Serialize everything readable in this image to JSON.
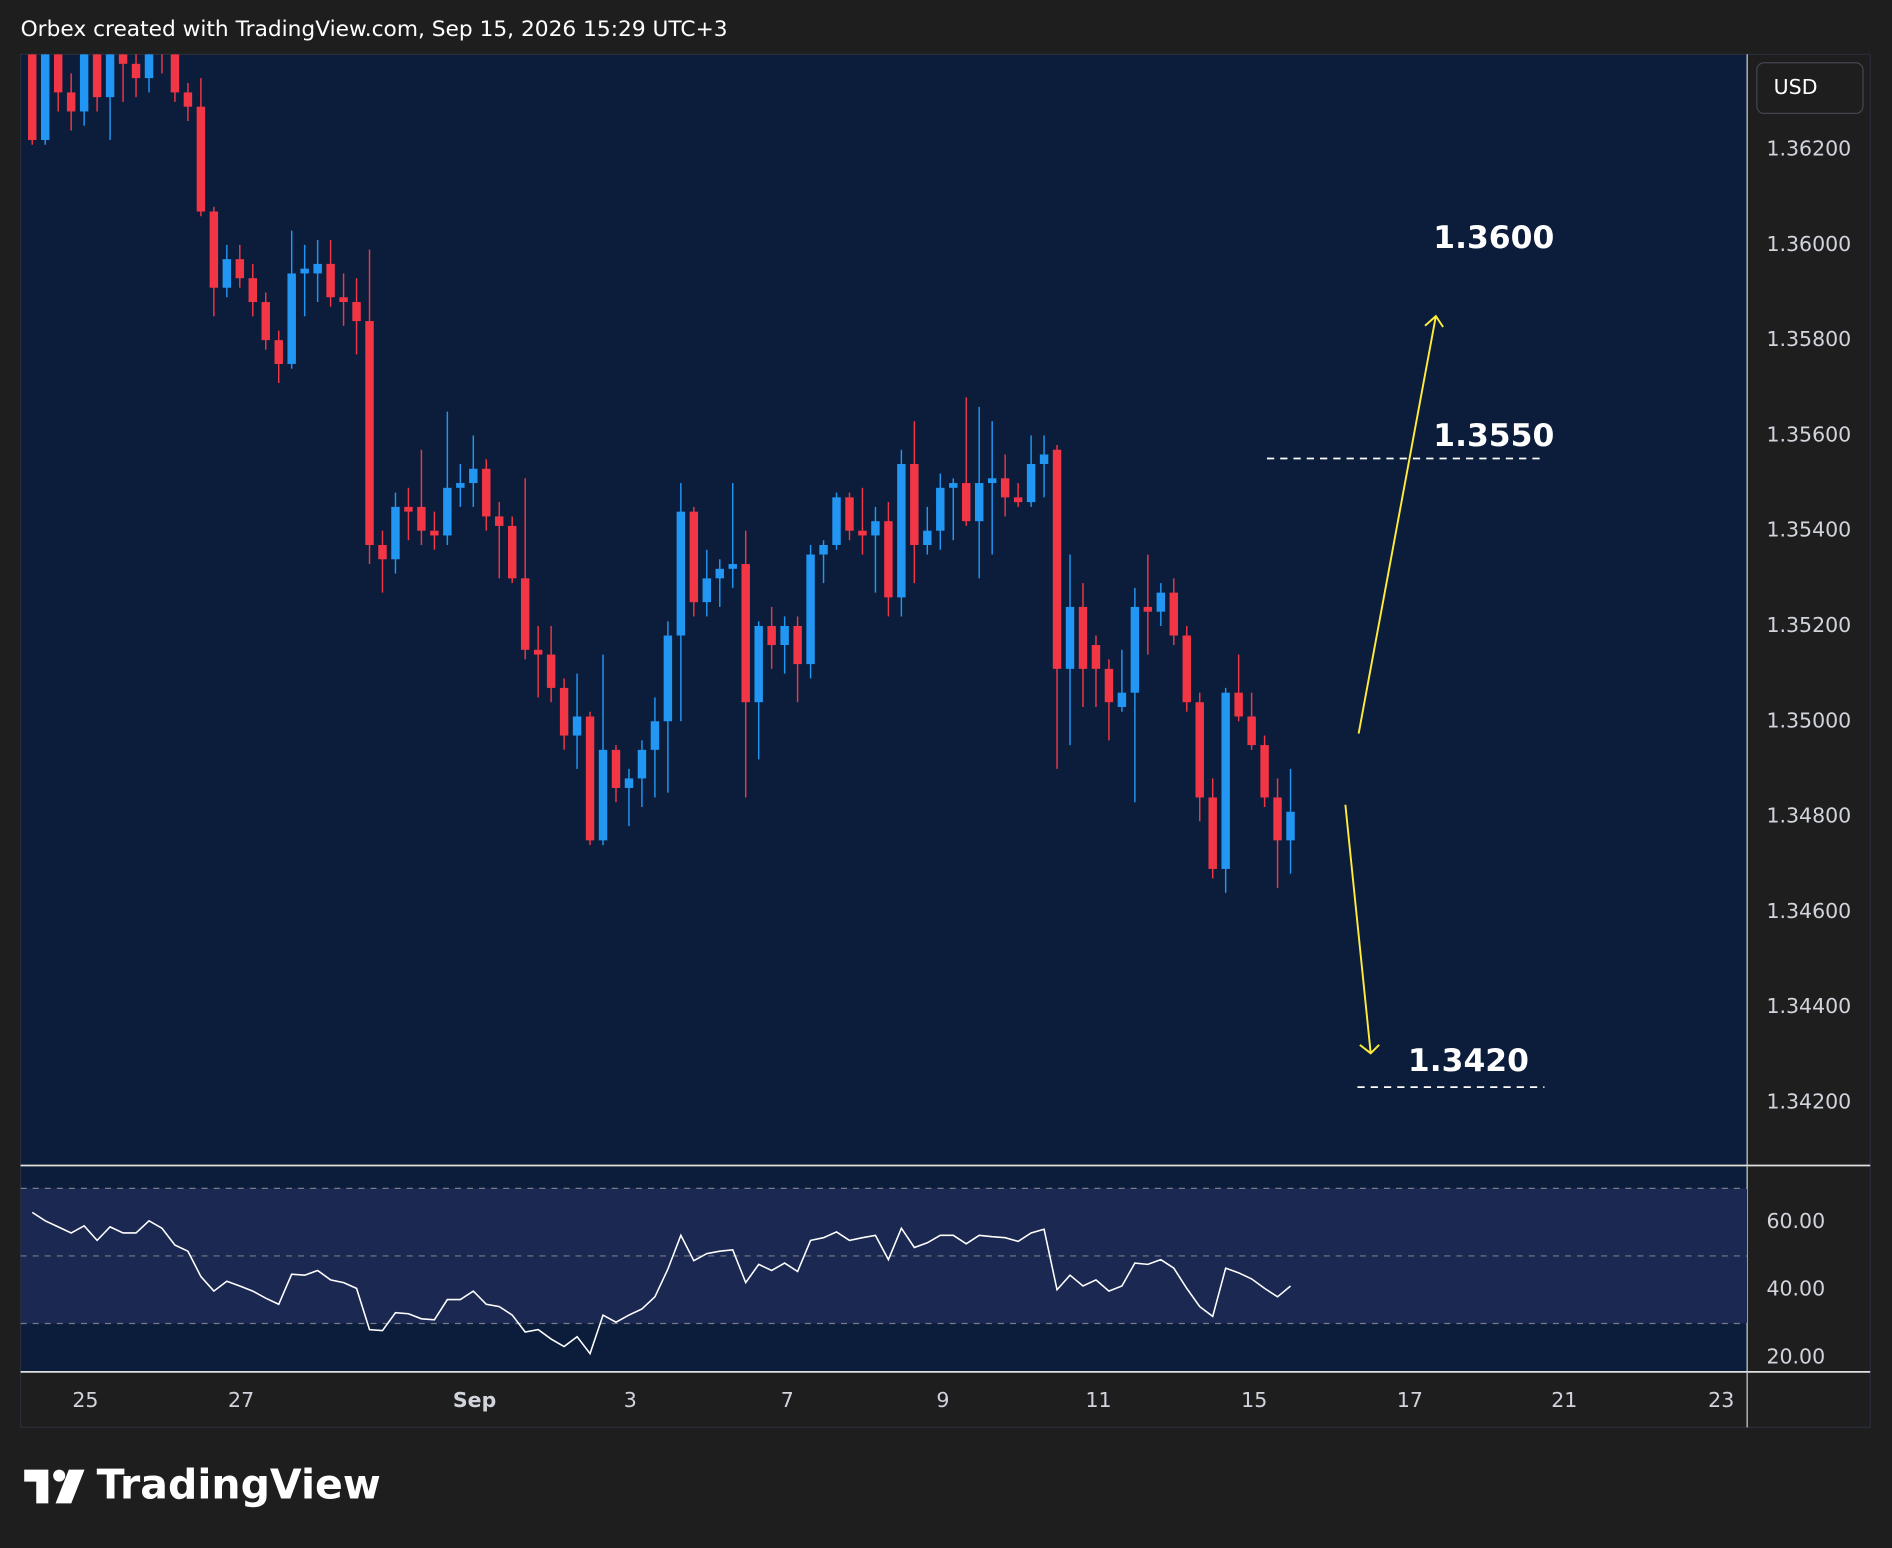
{
  "header": "Orbex created with TradingView.com, Sep 15, 2026 15:29 UTC+3",
  "brand": "TradingView",
  "chart_data": [
    {
      "type": "candlestick",
      "currency": "USD",
      "up_color": "#2196f3",
      "down_color": "#f23645",
      "xlim": [
        -0.9,
        132.2
      ],
      "ylim": [
        1.3407,
        1.364
      ],
      "yticks": [
        {
          "value": 1.342,
          "label": "1.34200"
        },
        {
          "value": 1.344,
          "label": "1.34400"
        },
        {
          "value": 1.346,
          "label": "1.34600"
        },
        {
          "value": 1.348,
          "label": "1.34800"
        },
        {
          "value": 1.35,
          "label": "1.35000"
        },
        {
          "value": 1.352,
          "label": "1.35200"
        },
        {
          "value": 1.354,
          "label": "1.35400"
        },
        {
          "value": 1.356,
          "label": "1.35600"
        },
        {
          "value": 1.358,
          "label": "1.35800"
        },
        {
          "value": 1.36,
          "label": "1.36000"
        },
        {
          "value": 1.362,
          "label": "1.36200"
        }
      ],
      "xticks": [
        {
          "value": 4.1,
          "label": "25"
        },
        {
          "value": 16.1,
          "label": "27"
        },
        {
          "value": 34.1,
          "label": "Sep"
        },
        {
          "value": 46.1,
          "label": "3"
        },
        {
          "value": 58.2,
          "label": "7"
        },
        {
          "value": 70.2,
          "label": "9"
        },
        {
          "value": 82.2,
          "label": "11"
        },
        {
          "value": 94.2,
          "label": "15"
        },
        {
          "value": 106.2,
          "label": "17"
        },
        {
          "value": 118.1,
          "label": "21"
        },
        {
          "value": 130.2,
          "label": "23"
        }
      ],
      "annotations": [
        {
          "text": "1.3600"
        },
        {
          "text": "1.3550"
        },
        {
          "text": "1.3420"
        }
      ],
      "values": [
        [
          1.364,
          1.3645,
          1.3621,
          1.3622
        ],
        [
          1.3622,
          1.3645,
          1.3621,
          1.364
        ],
        [
          1.364,
          1.3645,
          1.3628,
          1.3632
        ],
        [
          1.3632,
          1.3636,
          1.3624,
          1.3628
        ],
        [
          1.3628,
          1.3645,
          1.3625,
          1.364
        ],
        [
          1.364,
          1.3645,
          1.3628,
          1.3631
        ],
        [
          1.3631,
          1.3645,
          1.3622,
          1.364
        ],
        [
          1.364,
          1.3645,
          1.363,
          1.3638
        ],
        [
          1.3638,
          1.3642,
          1.3631,
          1.3635
        ],
        [
          1.3635,
          1.3645,
          1.3632,
          1.364
        ],
        [
          1.3641,
          1.3645,
          1.3636,
          1.364
        ],
        [
          1.364,
          1.3645,
          1.363,
          1.3632
        ],
        [
          1.3632,
          1.3634,
          1.3626,
          1.3629
        ],
        [
          1.3629,
          1.3635,
          1.3606,
          1.3607
        ],
        [
          1.3607,
          1.3608,
          1.3585,
          1.3591
        ],
        [
          1.3591,
          1.36,
          1.3589,
          1.3597
        ],
        [
          1.3597,
          1.36,
          1.3591,
          1.3593
        ],
        [
          1.3593,
          1.3596,
          1.3585,
          1.3588
        ],
        [
          1.3588,
          1.359,
          1.3578,
          1.358
        ],
        [
          1.358,
          1.3582,
          1.3571,
          1.3575
        ],
        [
          1.3575,
          1.3603,
          1.3574,
          1.3594
        ],
        [
          1.3594,
          1.36,
          1.3585,
          1.3595
        ],
        [
          1.3594,
          1.3601,
          1.3588,
          1.3596
        ],
        [
          1.3596,
          1.3601,
          1.3587,
          1.3589
        ],
        [
          1.3589,
          1.3594,
          1.3583,
          1.3588
        ],
        [
          1.3588,
          1.3593,
          1.3577,
          1.3584
        ],
        [
          1.3584,
          1.3599,
          1.3533,
          1.3537
        ],
        [
          1.3537,
          1.354,
          1.3527,
          1.3534
        ],
        [
          1.3534,
          1.3548,
          1.3531,
          1.3545
        ],
        [
          1.3545,
          1.3549,
          1.3538,
          1.3544
        ],
        [
          1.3545,
          1.3557,
          1.3537,
          1.354
        ],
        [
          1.354,
          1.3544,
          1.3536,
          1.3539
        ],
        [
          1.3539,
          1.3565,
          1.3537,
          1.3549
        ],
        [
          1.3549,
          1.3554,
          1.3545,
          1.355
        ],
        [
          1.355,
          1.356,
          1.3545,
          1.3553
        ],
        [
          1.3553,
          1.3555,
          1.354,
          1.3543
        ],
        [
          1.3543,
          1.3546,
          1.353,
          1.3541
        ],
        [
          1.3541,
          1.3543,
          1.3529,
          1.353
        ],
        [
          1.353,
          1.3551,
          1.3513,
          1.3515
        ],
        [
          1.3515,
          1.352,
          1.3505,
          1.3514
        ],
        [
          1.3514,
          1.352,
          1.3504,
          1.3507
        ],
        [
          1.3507,
          1.3509,
          1.3494,
          1.3497
        ],
        [
          1.3497,
          1.351,
          1.349,
          1.3501
        ],
        [
          1.3501,
          1.3502,
          1.3474,
          1.3475
        ],
        [
          1.3475,
          1.3514,
          1.3474,
          1.3494
        ],
        [
          1.3494,
          1.3495,
          1.3483,
          1.3486
        ],
        [
          1.3486,
          1.349,
          1.3478,
          1.3488
        ],
        [
          1.3488,
          1.3496,
          1.3482,
          1.3494
        ],
        [
          1.3494,
          1.3505,
          1.3484,
          1.35
        ],
        [
          1.35,
          1.3521,
          1.3485,
          1.3518
        ],
        [
          1.3518,
          1.355,
          1.35,
          1.3544
        ],
        [
          1.3544,
          1.3545,
          1.3522,
          1.3525
        ],
        [
          1.3525,
          1.3536,
          1.3522,
          1.353
        ],
        [
          1.353,
          1.3534,
          1.3524,
          1.3532
        ],
        [
          1.3532,
          1.355,
          1.3528,
          1.3533
        ],
        [
          1.3533,
          1.354,
          1.3484,
          1.3504
        ],
        [
          1.3504,
          1.3521,
          1.3492,
          1.352
        ],
        [
          1.352,
          1.3524,
          1.3511,
          1.3516
        ],
        [
          1.3516,
          1.3522,
          1.351,
          1.352
        ],
        [
          1.352,
          1.3522,
          1.3504,
          1.3512
        ],
        [
          1.3512,
          1.3537,
          1.3509,
          1.3535
        ],
        [
          1.3535,
          1.3538,
          1.3529,
          1.3537
        ],
        [
          1.3537,
          1.3548,
          1.3536,
          1.3547
        ],
        [
          1.3547,
          1.3548,
          1.3538,
          1.354
        ],
        [
          1.354,
          1.3549,
          1.3535,
          1.3539
        ],
        [
          1.3539,
          1.3545,
          1.3527,
          1.3542
        ],
        [
          1.3542,
          1.3546,
          1.3522,
          1.3526
        ],
        [
          1.3526,
          1.3557,
          1.3522,
          1.3554
        ],
        [
          1.3554,
          1.3563,
          1.3529,
          1.3537
        ],
        [
          1.3537,
          1.3545,
          1.3535,
          1.354
        ],
        [
          1.354,
          1.3552,
          1.3536,
          1.3549
        ],
        [
          1.3549,
          1.3551,
          1.3538,
          1.355
        ],
        [
          1.355,
          1.3568,
          1.3541,
          1.3542
        ],
        [
          1.3542,
          1.3566,
          1.353,
          1.355
        ],
        [
          1.355,
          1.3563,
          1.3535,
          1.3551
        ],
        [
          1.3551,
          1.3556,
          1.3543,
          1.3547
        ],
        [
          1.3547,
          1.355,
          1.3545,
          1.3546
        ],
        [
          1.3546,
          1.356,
          1.3545,
          1.3554
        ],
        [
          1.3554,
          1.356,
          1.3547,
          1.3556
        ],
        [
          1.3557,
          1.3558,
          1.349,
          1.3511
        ],
        [
          1.3511,
          1.3535,
          1.3495,
          1.3524
        ],
        [
          1.3524,
          1.3529,
          1.3503,
          1.3511
        ],
        [
          1.3516,
          1.3518,
          1.3503,
          1.3511
        ],
        [
          1.3511,
          1.3513,
          1.3496,
          1.3504
        ],
        [
          1.3503,
          1.3515,
          1.3502,
          1.3506
        ],
        [
          1.3506,
          1.3528,
          1.3483,
          1.3524
        ],
        [
          1.3524,
          1.3535,
          1.3514,
          1.3523
        ],
        [
          1.3523,
          1.3529,
          1.352,
          1.3527
        ],
        [
          1.3527,
          1.353,
          1.3516,
          1.3518
        ],
        [
          1.3518,
          1.352,
          1.3502,
          1.3504
        ],
        [
          1.3504,
          1.3506,
          1.3479,
          1.3484
        ],
        [
          1.3484,
          1.3488,
          1.3467,
          1.3469
        ],
        [
          1.3469,
          1.3507,
          1.3464,
          1.3506
        ],
        [
          1.3506,
          1.3514,
          1.35,
          1.3501
        ],
        [
          1.3501,
          1.3506,
          1.3494,
          1.3495
        ],
        [
          1.3495,
          1.3497,
          1.3482,
          1.3484
        ],
        [
          1.3484,
          1.3488,
          1.3465,
          1.3475
        ],
        [
          1.3475,
          1.349,
          1.3468,
          1.3481
        ]
      ]
    },
    {
      "type": "line",
      "color": "#ffffff",
      "ylim": [
        15.7,
        76.4
      ],
      "yticks": [
        {
          "value": 20,
          "label": "20.00"
        },
        {
          "value": 40,
          "label": "40.00"
        },
        {
          "value": 60,
          "label": "60.00"
        }
      ],
      "levels": [
        70,
        50,
        30
      ],
      "values": [
        62.9,
        60.4,
        58.6,
        56.8,
        58.9,
        54.6,
        58.6,
        56.8,
        56.8,
        60.4,
        58.2,
        53.2,
        51.4,
        43.9,
        39.6,
        42.5,
        41.1,
        39.6,
        37.5,
        35.7,
        44.6,
        44.3,
        45.7,
        42.9,
        42.1,
        40.4,
        28.2,
        27.9,
        33.2,
        32.9,
        31.4,
        31.1,
        37.1,
        37.1,
        39.6,
        35.7,
        35.0,
        32.5,
        27.5,
        28.2,
        25.4,
        23.2,
        26.1,
        21.1,
        32.5,
        30.4,
        32.5,
        34.3,
        37.9,
        46.1,
        56.1,
        48.6,
        50.7,
        51.4,
        51.8,
        42.1,
        47.5,
        45.7,
        47.9,
        45.4,
        54.6,
        55.4,
        57.1,
        54.6,
        55.4,
        56.1,
        48.9,
        58.2,
        52.5,
        53.9,
        56.1,
        56.1,
        53.6,
        56.1,
        55.7,
        55.4,
        54.3,
        56.8,
        57.9,
        40.0,
        44.3,
        41.1,
        42.9,
        39.6,
        41.1,
        47.9,
        47.5,
        48.9,
        46.4,
        40.4,
        35.0,
        32.1,
        46.4,
        45.0,
        43.2,
        40.4,
        37.9,
        41.1
      ]
    }
  ]
}
